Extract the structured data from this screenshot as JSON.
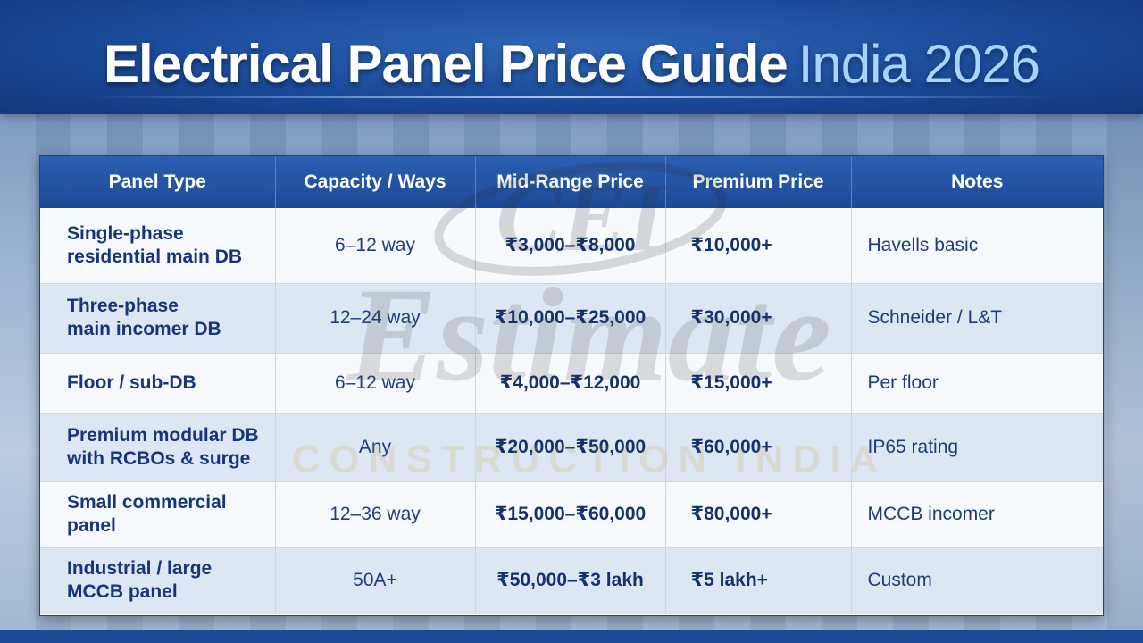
{
  "header": {
    "title_main": "Electrical Panel Price Guide",
    "title_sub": "India 2026"
  },
  "table": {
    "columns": [
      "Panel Type",
      "Capacity / Ways",
      "Mid-Range Price",
      "Premium Price",
      "Notes"
    ],
    "rows": [
      {
        "type_line1": "Single-phase",
        "type_line2": "residential main DB",
        "capacity": "6–12 way",
        "mid": "₹3,000–₹8,000",
        "premium": "₹10,000+",
        "notes": "Havells basic"
      },
      {
        "type_line1": "Three-phase",
        "type_line2": "main incomer DB",
        "capacity": "12–24 way",
        "mid": "₹10,000–₹25,000",
        "premium": "₹30,000+",
        "notes": "Schneider / L&T"
      },
      {
        "type_line1": "Floor / sub-DB",
        "type_line2": "",
        "capacity": "6–12 way",
        "mid": "₹4,000–₹12,000",
        "premium": "₹15,000+",
        "notes": "Per floor"
      },
      {
        "type_line1": "Premium modular DB",
        "type_line2": "with RCBOs & surge",
        "capacity": "Any",
        "mid": "₹20,000–₹50,000",
        "premium": "₹60,000+",
        "notes": "IP65 rating"
      },
      {
        "type_line1": "Small commercial",
        "type_line2": "panel",
        "capacity": "12–36 way",
        "mid": "₹15,000–₹60,000",
        "premium": "₹80,000+",
        "notes": "MCCB incomer"
      },
      {
        "type_line1": "Industrial / large",
        "type_line2": "MCCB panel",
        "capacity": "50A+",
        "mid": "₹50,000–₹3 lakh",
        "premium": "₹5 lakh+",
        "notes": "Custom"
      }
    ]
  },
  "watermark": {
    "logo_text": "CEI",
    "script_text": "Estimate",
    "sub_text": "CONSTRUCTION INDIA"
  },
  "colors": {
    "header_blue": "#1a4a99",
    "title_accent": "#a8d4ff",
    "table_header": "#1d4a97"
  }
}
